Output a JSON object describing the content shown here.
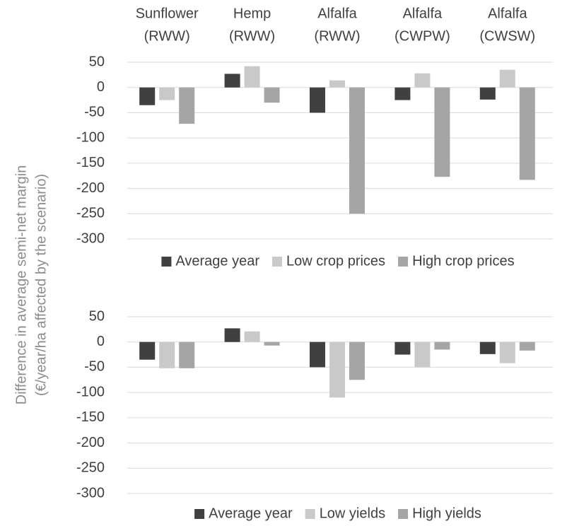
{
  "chart_data": [
    {
      "type": "bar",
      "categories": [
        [
          "Sunflower",
          "(RWW)"
        ],
        [
          "Hemp",
          "(RWW)"
        ],
        [
          "Alfalfa",
          "(RWW)"
        ],
        [
          "Alfalfa",
          "(CWPW)"
        ],
        [
          "Alfalfa",
          "(CWSW)"
        ]
      ],
      "ylabel": [
        "Difference in average semi-net margin",
        "(€/year/ha affected by the scenario)"
      ],
      "ylim": [
        -300,
        50
      ],
      "yticks": [
        -300,
        -250,
        -200,
        -150,
        -100,
        -50,
        0,
        50
      ],
      "grid": true,
      "series": [
        {
          "name": "Average year",
          "color": "#404040",
          "values": [
            -35,
            27,
            -50,
            -25,
            -24
          ]
        },
        {
          "name": "Low crop prices",
          "color": "#c9c9c9",
          "values": [
            -25,
            42,
            14,
            28,
            35
          ]
        },
        {
          "name": "High crop prices",
          "color": "#a5a5a5",
          "values": [
            -72,
            -30,
            -250,
            -177,
            -183
          ]
        }
      ]
    },
    {
      "type": "bar",
      "ylim": [
        -300,
        50
      ],
      "yticks": [
        -300,
        -250,
        -200,
        -150,
        -100,
        -50,
        0,
        50
      ],
      "grid": true,
      "series": [
        {
          "name": "Average year",
          "color": "#404040",
          "values": [
            -35,
            27,
            -50,
            -25,
            -24
          ]
        },
        {
          "name": "Low yields",
          "color": "#c9c9c9",
          "values": [
            -52,
            21,
            -110,
            -50,
            -42
          ]
        },
        {
          "name": "High yields",
          "color": "#a5a5a5",
          "values": [
            -52,
            -7,
            -75,
            -15,
            -17
          ]
        }
      ]
    }
  ]
}
